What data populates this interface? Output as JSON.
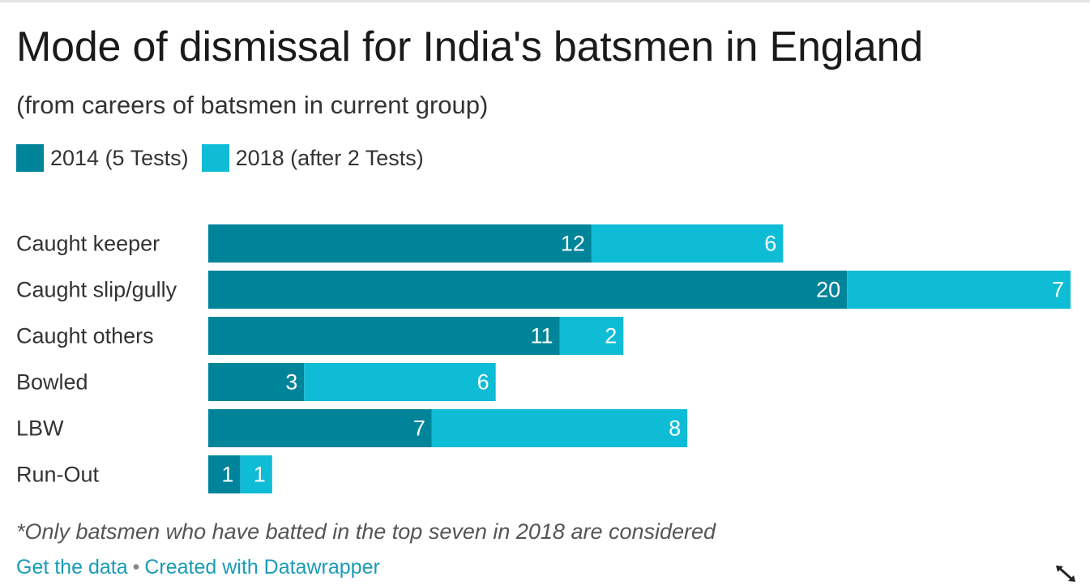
{
  "title": "Mode of dismissal for India's batsmen in England",
  "subtitle": "(from careers of batsmen in current group)",
  "legend": [
    {
      "label": "2014 (5 Tests)",
      "color": "#00849a"
    },
    {
      "label": "2018 (after 2 Tests)",
      "color": "#0fbcd6"
    }
  ],
  "chart_data": {
    "type": "bar",
    "orientation": "horizontal",
    "stacked": true,
    "categories": [
      "Caught keeper",
      "Caught slip/gully",
      "Caught others",
      "Bowled",
      "LBW",
      "Run-Out"
    ],
    "series": [
      {
        "name": "2014 (5 Tests)",
        "color": "#00849a",
        "values": [
          12,
          20,
          11,
          3,
          7,
          1
        ]
      },
      {
        "name": "2018 (after 2 Tests)",
        "color": "#0fbcd6",
        "values": [
          6,
          7,
          2,
          6,
          8,
          1
        ]
      }
    ],
    "xlim": [
      0,
      27
    ],
    "grid": false,
    "data_labels": true
  },
  "note": "*Only batsmen who have batted in the top seven in 2018 are considered",
  "footer": {
    "get_data": "Get the data",
    "separator": "•",
    "created_with": "Created with Datawrapper"
  },
  "icons": {
    "resize": "resize-diagonal-icon"
  }
}
